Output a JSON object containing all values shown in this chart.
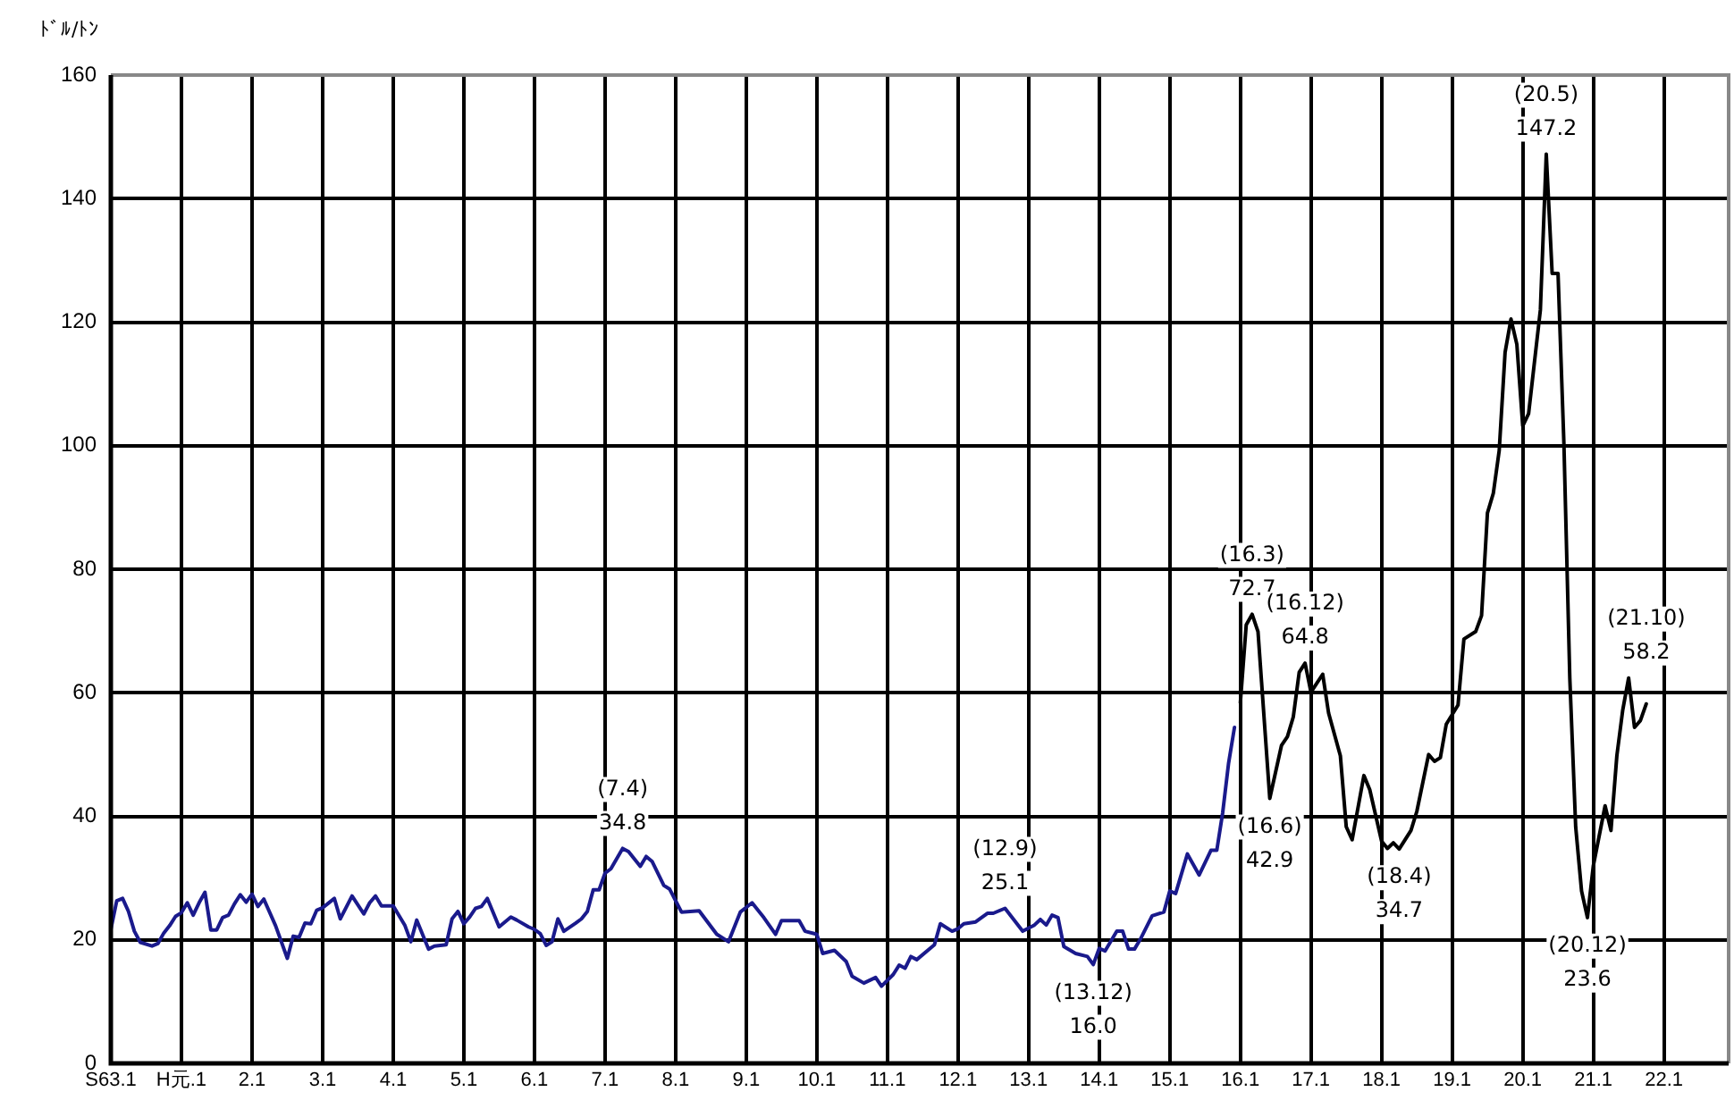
{
  "chart_data": {
    "type": "line",
    "ylabel": "ﾄﾞﾙ/ﾄﾝ",
    "categories": [
      "S63.1",
      null,
      null,
      null,
      null,
      null,
      null,
      null,
      null,
      null,
      null,
      null,
      "H元.1",
      null,
      null,
      null,
      null,
      null,
      null,
      null,
      null,
      null,
      null,
      null,
      "2.1",
      null,
      null,
      null,
      null,
      null,
      null,
      null,
      null,
      null,
      null,
      null,
      "3.1",
      null,
      null,
      null,
      null,
      null,
      null,
      null,
      null,
      null,
      null,
      null,
      "4.1",
      null,
      null,
      null,
      null,
      null,
      null,
      null,
      null,
      null,
      null,
      null,
      "5.1",
      null,
      null,
      null,
      null,
      null,
      null,
      null,
      null,
      null,
      null,
      null,
      "6.1",
      null,
      null,
      null,
      null,
      null,
      null,
      null,
      null,
      null,
      null,
      null,
      "7.1",
      null,
      null,
      null,
      null,
      null,
      null,
      null,
      null,
      null,
      null,
      null,
      "8.1",
      null,
      null,
      null,
      null,
      null,
      null,
      null,
      null,
      null,
      null,
      null,
      "9.1",
      null,
      null,
      null,
      null,
      null,
      null,
      null,
      null,
      null,
      null,
      null,
      "10.1",
      null,
      null,
      null,
      null,
      null,
      null,
      null,
      null,
      null,
      null,
      null,
      "11.1",
      null,
      null,
      null,
      null,
      null,
      null,
      null,
      null,
      null,
      null,
      null,
      "12.1",
      null,
      null,
      null,
      null,
      null,
      null,
      null,
      null,
      null,
      null,
      null,
      "13.1",
      null,
      null,
      null,
      null,
      null,
      null,
      null,
      null,
      null,
      null,
      null,
      "14.1",
      null,
      null,
      null,
      null,
      null,
      null,
      null,
      null,
      null,
      null,
      null,
      "15.1",
      null,
      null,
      null,
      null,
      null,
      null,
      null,
      null,
      null,
      null,
      null,
      "16.1",
      null,
      null,
      null,
      null,
      null,
      null,
      null,
      null,
      null,
      null,
      null,
      "17.1",
      null,
      null,
      null,
      null,
      null,
      null,
      null,
      null,
      null,
      null,
      null,
      "18.1",
      null,
      null,
      null,
      null,
      null,
      null,
      null,
      null,
      null,
      null,
      null,
      "19.1",
      null,
      null,
      null,
      null,
      null,
      null,
      null,
      null,
      null,
      null,
      null,
      "20.1",
      null,
      null,
      null,
      null,
      null,
      null,
      null,
      null,
      null,
      null,
      null,
      "21.1",
      null,
      null,
      null,
      null,
      null,
      null,
      null,
      null,
      null,
      null,
      null,
      "22.1",
      null,
      null,
      null,
      null,
      null,
      null,
      null,
      null,
      null,
      null,
      null
    ],
    "ylim": [
      0,
      160
    ],
    "yticks": [
      0,
      20,
      40,
      60,
      80,
      100,
      120,
      140,
      160
    ],
    "grid": true,
    "series": [
      {
        "color": "#1a1a8c",
        "values": [
          21.7,
          26.3,
          26.7,
          24.6,
          21.4,
          19.6,
          null,
          19.0,
          19.4,
          21.1,
          22.3,
          23.8,
          24.4,
          26.0,
          24.0,
          26.0,
          27.7,
          21.6,
          21.6,
          23.6,
          24.0,
          25.8,
          27.3,
          26.1,
          27.4,
          25.4,
          26.6,
          null,
          22.3,
          null,
          17.0,
          20.6,
          20.4,
          22.7,
          22.6,
          24.8,
          25.2,
          null,
          26.7,
          23.4,
          null,
          27.1,
          null,
          24.2,
          26.0,
          27.1,
          25.5,
          null,
          25.5,
          null,
          22.3,
          19.7,
          23.2,
          null,
          18.5,
          19.0,
          null,
          19.2,
          23.4,
          24.6,
          22.6,
          23.7,
          25.1,
          25.4,
          26.7,
          null,
          22.1,
          null,
          23.7,
          23.2,
          null,
          22.1,
          21.7,
          21.0,
          19.1,
          19.7,
          23.4,
          21.4,
          null,
          22.7,
          23.4,
          24.6,
          28.1,
          28.1,
          30.8,
          31.5,
          null,
          34.8,
          34.3,
          null,
          31.9,
          33.5,
          32.7,
          null,
          28.8,
          28.2,
          null,
          24.5,
          null,
          null,
          24.7,
          null,
          null,
          20.9,
          null,
          19.7,
          null,
          24.5,
          null,
          26.0,
          null,
          23.6,
          null,
          20.9,
          23.1,
          null,
          null,
          23.1,
          21.4,
          null,
          20.9,
          17.8,
          null,
          18.3,
          null,
          16.5,
          14.1,
          null,
          13.0,
          null,
          13.9,
          12.5,
          null,
          14.4,
          15.9,
          15.4,
          17.3,
          16.8,
          null,
          null,
          19.2,
          22.6,
          null,
          21.4,
          21.8,
          22.6,
          null,
          22.9,
          null,
          24.3,
          24.3,
          null,
          25.1,
          null,
          null,
          21.4,
          null,
          22.4,
          23.3,
          22.4,
          24.0,
          23.6,
          18.9,
          null,
          17.8,
          null,
          17.3,
          16.0,
          18.6,
          18.2,
          null,
          21.4,
          21.4,
          18.5,
          18.5,
          20.1,
          null,
          23.9,
          null,
          24.5,
          27.9,
          27.5,
          null,
          33.9,
          null,
          30.5,
          null,
          34.5,
          34.5,
          40.6,
          48.6,
          54.4,
          null,
          null,
          null,
          null,
          null,
          null,
          null,
          null,
          null,
          null,
          null,
          null,
          null,
          null,
          null,
          null,
          null,
          null,
          null,
          null,
          null,
          null,
          null,
          null,
          null,
          null,
          null,
          null,
          null,
          null,
          null,
          null,
          null,
          null,
          null,
          null,
          null,
          null,
          null,
          null,
          null,
          null,
          null,
          null,
          null,
          null,
          null,
          null,
          null,
          null,
          null,
          null,
          null,
          null,
          null,
          null,
          null,
          null,
          null,
          null,
          null,
          null,
          null,
          null,
          null,
          null,
          null,
          null,
          null,
          null,
          null,
          null,
          null,
          null,
          null,
          null,
          null,
          null,
          null,
          null,
          null,
          null,
          null,
          null
        ]
      },
      {
        "color": "#000000",
        "values": [
          null,
          null,
          null,
          null,
          null,
          null,
          null,
          null,
          null,
          null,
          null,
          null,
          null,
          null,
          null,
          null,
          null,
          null,
          null,
          null,
          null,
          null,
          null,
          null,
          null,
          null,
          null,
          null,
          null,
          null,
          null,
          null,
          null,
          null,
          null,
          null,
          null,
          null,
          null,
          null,
          null,
          null,
          null,
          null,
          null,
          null,
          null,
          null,
          null,
          null,
          null,
          null,
          null,
          null,
          null,
          null,
          null,
          null,
          null,
          null,
          null,
          null,
          null,
          null,
          null,
          null,
          null,
          null,
          null,
          null,
          null,
          null,
          null,
          null,
          null,
          null,
          null,
          null,
          null,
          null,
          null,
          null,
          null,
          null,
          null,
          null,
          null,
          null,
          null,
          null,
          null,
          null,
          null,
          null,
          null,
          null,
          null,
          null,
          null,
          null,
          null,
          null,
          null,
          null,
          null,
          null,
          null,
          null,
          null,
          null,
          null,
          null,
          null,
          null,
          null,
          null,
          null,
          null,
          null,
          null,
          null,
          null,
          null,
          null,
          null,
          null,
          null,
          null,
          null,
          null,
          null,
          null,
          null,
          null,
          null,
          null,
          null,
          null,
          null,
          null,
          null,
          null,
          null,
          null,
          null,
          null,
          null,
          null,
          null,
          null,
          null,
          null,
          null,
          null,
          null,
          null,
          null,
          null,
          null,
          null,
          null,
          null,
          null,
          null,
          null,
          null,
          null,
          null,
          null,
          null,
          null,
          null,
          null,
          null,
          null,
          null,
          null,
          null,
          null,
          null,
          null,
          null,
          null,
          null,
          null,
          null,
          null,
          null,
          null,
          null,
          null,
          null,
          58.4,
          71.0,
          72.7,
          69.9,
          null,
          42.9,
          null,
          51.5,
          52.9,
          56.1,
          63.3,
          64.8,
          60.1,
          null,
          63.0,
          56.7,
          null,
          49.8,
          38.3,
          36.2,
          null,
          46.6,
          44.3,
          null,
          36.0,
          34.8,
          35.7,
          34.7,
          null,
          37.7,
          40.8,
          null,
          50.0,
          48.9,
          49.5,
          54.9,
          null,
          58.0,
          68.7,
          null,
          69.9,
          72.5,
          89.1,
          92.3,
          99.2,
          115.1,
          120.5,
          116.4,
          103.2,
          105.2,
          null,
          122.0,
          147.2,
          127.9,
          127.9,
          100.3,
          62.4,
          38.3,
          27.9,
          23.6,
          32.0,
          null,
          41.7,
          37.7,
          49.8,
          57.2,
          62.4,
          54.4,
          55.5,
          58.2,
          null,
          null,
          null,
          null,
          null,
          null,
          null,
          null,
          null,
          null,
          null,
          null,
          null,
          null
        ]
      }
    ],
    "annotations": [
      {
        "text": "(7.4)\n34.8",
        "y": 34.8
      },
      {
        "text": "(12.9)\n25.1",
        "y": 25.1
      },
      {
        "text": "(13.12)\n16.0",
        "y": 16.0
      },
      {
        "text": "(16.3)\n72.7",
        "y": 72.7
      },
      {
        "text": "(16.6)\n42.9",
        "y": 42.9
      },
      {
        "text": "(16.12)\n64.8",
        "y": 64.8
      },
      {
        "text": "(18.4)\n34.7",
        "y": 34.7
      },
      {
        "text": "(20.5)\n147.2",
        "y": 147.2
      },
      {
        "text": "(20.12)\n23.6",
        "y": 23.6
      },
      {
        "text": "(21.10)\n58.2",
        "y": 58.2
      }
    ]
  }
}
